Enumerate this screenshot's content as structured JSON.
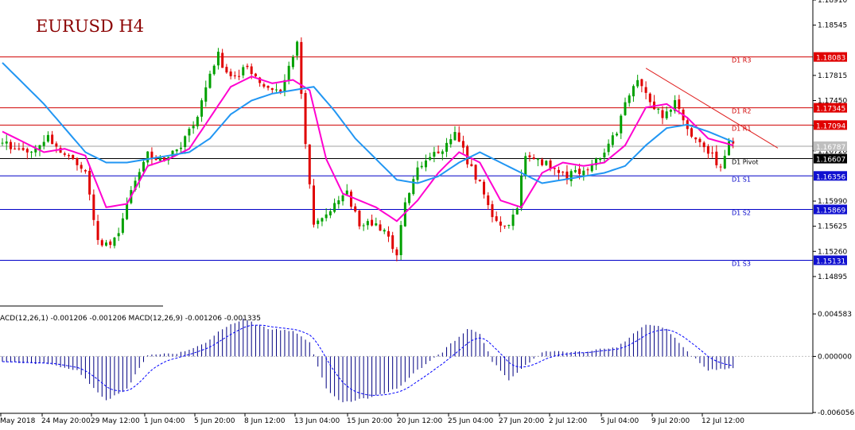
{
  "chart_data": {
    "type": "candlestick",
    "title": "EURUSD H4",
    "colors": {
      "bull": "#00a000",
      "bear": "#e00000",
      "ma_fast": "#ff00d0",
      "ma_slow": "#2196f3",
      "resistance": "#d00000",
      "pivot": "#000000",
      "support": "#0000c8",
      "current_price_line": "#a0a0a0",
      "trendline": "#e02020",
      "macd_bars": "#000080",
      "macd_signal": "#0000ff"
    },
    "price_axis": {
      "range": [
        1.1449,
        1.1891
      ],
      "ticks": [
        "1.18910",
        "1.18545",
        "1.17815",
        "1.17450",
        "1.17085",
        "1.16720",
        "1.15990",
        "1.15625",
        "1.15260",
        "1.14895"
      ]
    },
    "levels": [
      {
        "label": "D1 R3",
        "value": "1.18083",
        "kind": "resistance"
      },
      {
        "label": "D1 R2",
        "value": "1.17345",
        "kind": "resistance"
      },
      {
        "label": "D1 R1",
        "value": "1.17094",
        "kind": "resistance"
      },
      {
        "label": "D1 Pivot",
        "value": "1.16607",
        "kind": "pivot"
      },
      {
        "label": "D1 S1",
        "value": "1.16356",
        "kind": "support"
      },
      {
        "label": "D1 S2",
        "value": "1.15869",
        "kind": "support"
      },
      {
        "label": "D1 S3",
        "value": "1.15131",
        "kind": "support"
      }
    ],
    "current_price": "1.16787",
    "time_axis_labels": [
      "May 2018",
      "24 May 20:00",
      "29 May 12:00",
      "1 Jun 04:00",
      "5 Jun 20:00",
      "8 Jun 12:00",
      "13 Jun 04:00",
      "15 Jun 20:00",
      "20 Jun 12:00",
      "25 Jun 04:00",
      "27 Jun 20:00",
      "2 Jul 12:00",
      "5 Jul 04:00",
      "9 Jul 20:00",
      "12 Jul 12:00"
    ],
    "price_path": [
      [
        0,
        1.1685
      ],
      [
        6,
        1.167
      ],
      [
        12,
        1.169
      ],
      [
        17,
        1.1665
      ],
      [
        21,
        1.164
      ],
      [
        24,
        1.1545
      ],
      [
        27,
        1.153
      ],
      [
        30,
        1.157
      ],
      [
        33,
        1.163
      ],
      [
        36,
        1.1665
      ],
      [
        40,
        1.166
      ],
      [
        44,
        1.168
      ],
      [
        48,
        1.172
      ],
      [
        51,
        1.1785
      ],
      [
        53,
        1.181
      ],
      [
        56,
        1.1775
      ],
      [
        60,
        1.1795
      ],
      [
        64,
        1.177
      ],
      [
        68,
        1.176
      ],
      [
        71,
        1.1805
      ],
      [
        72,
        1.1825
      ],
      [
        74,
        1.168
      ],
      [
        76,
        1.1565
      ],
      [
        80,
        1.159
      ],
      [
        84,
        1.1615
      ],
      [
        87,
        1.156
      ],
      [
        91,
        1.157
      ],
      [
        94,
        1.1545
      ],
      [
        96,
        1.1525
      ],
      [
        98,
        1.16
      ],
      [
        101,
        1.165
      ],
      [
        105,
        1.1665
      ],
      [
        108,
        1.168
      ],
      [
        110,
        1.1705
      ],
      [
        113,
        1.1655
      ],
      [
        116,
        1.1625
      ],
      [
        119,
        1.157
      ],
      [
        122,
        1.156
      ],
      [
        125,
        1.159
      ],
      [
        127,
        1.167
      ],
      [
        130,
        1.1655
      ],
      [
        134,
        1.165
      ],
      [
        137,
        1.1635
      ],
      [
        141,
        1.1645
      ],
      [
        145,
        1.1665
      ],
      [
        149,
        1.17
      ],
      [
        152,
        1.1755
      ],
      [
        154,
        1.1775
      ],
      [
        157,
        1.1745
      ],
      [
        160,
        1.172
      ],
      [
        163,
        1.1745
      ],
      [
        166,
        1.1705
      ],
      [
        169,
        1.1685
      ],
      [
        172,
        1.1665
      ],
      [
        174,
        1.1645
      ],
      [
        175,
        1.166
      ],
      [
        176,
        1.168
      ]
    ],
    "moving_averages": [
      {
        "name": "fast",
        "values": [
          [
            0,
            1.17
          ],
          [
            5,
            1.1685
          ],
          [
            10,
            1.167
          ],
          [
            15,
            1.1675
          ],
          [
            20,
            1.1665
          ],
          [
            25,
            1.159
          ],
          [
            30,
            1.1595
          ],
          [
            35,
            1.165
          ],
          [
            40,
            1.166
          ],
          [
            45,
            1.1675
          ],
          [
            50,
            1.172
          ],
          [
            55,
            1.1765
          ],
          [
            60,
            1.178
          ],
          [
            65,
            1.177
          ],
          [
            70,
            1.1775
          ],
          [
            74,
            1.176
          ],
          [
            78,
            1.166
          ],
          [
            82,
            1.161
          ],
          [
            86,
            1.16
          ],
          [
            90,
            1.159
          ],
          [
            95,
            1.157
          ],
          [
            100,
            1.16
          ],
          [
            105,
            1.164
          ],
          [
            110,
            1.167
          ],
          [
            115,
            1.1655
          ],
          [
            120,
            1.16
          ],
          [
            125,
            1.159
          ],
          [
            130,
            1.164
          ],
          [
            135,
            1.1655
          ],
          [
            140,
            1.165
          ],
          [
            145,
            1.1655
          ],
          [
            150,
            1.168
          ],
          [
            155,
            1.1735
          ],
          [
            160,
            1.174
          ],
          [
            165,
            1.172
          ],
          [
            170,
            1.169
          ],
          [
            176,
            1.168
          ]
        ]
      },
      {
        "name": "slow",
        "values": [
          [
            0,
            1.18
          ],
          [
            5,
            1.177
          ],
          [
            10,
            1.174
          ],
          [
            15,
            1.1705
          ],
          [
            20,
            1.167
          ],
          [
            25,
            1.1655
          ],
          [
            30,
            1.1655
          ],
          [
            35,
            1.166
          ],
          [
            40,
            1.1665
          ],
          [
            45,
            1.167
          ],
          [
            50,
            1.169
          ],
          [
            55,
            1.1725
          ],
          [
            60,
            1.1745
          ],
          [
            65,
            1.1755
          ],
          [
            70,
            1.176
          ],
          [
            75,
            1.1765
          ],
          [
            80,
            1.173
          ],
          [
            85,
            1.169
          ],
          [
            90,
            1.166
          ],
          [
            95,
            1.163
          ],
          [
            100,
            1.1625
          ],
          [
            105,
            1.1635
          ],
          [
            110,
            1.1655
          ],
          [
            115,
            1.167
          ],
          [
            120,
            1.1655
          ],
          [
            125,
            1.164
          ],
          [
            130,
            1.1625
          ],
          [
            135,
            1.163
          ],
          [
            140,
            1.1635
          ],
          [
            145,
            1.164
          ],
          [
            150,
            1.165
          ],
          [
            155,
            1.168
          ],
          [
            160,
            1.1705
          ],
          [
            165,
            1.171
          ],
          [
            170,
            1.17
          ],
          [
            176,
            1.1685
          ]
        ]
      }
    ],
    "macd": {
      "label": "ACD(12,26,1) -0.001206 -0.001206 MACD(12,26,9) -0.001206 -0.001335",
      "axis_ticks": [
        "0.004583",
        "0.000000",
        "-0.006056"
      ],
      "range": [
        -0.006056,
        0.004583
      ],
      "histogram_path": [
        [
          0,
          -0.0006
        ],
        [
          10,
          -0.0008
        ],
        [
          18,
          -0.0015
        ],
        [
          25,
          -0.0048
        ],
        [
          30,
          -0.0035
        ],
        [
          35,
          0.0002
        ],
        [
          42,
          0.0003
        ],
        [
          48,
          0.0012
        ],
        [
          53,
          0.003
        ],
        [
          58,
          0.004
        ],
        [
          64,
          0.003
        ],
        [
          70,
          0.0028
        ],
        [
          74,
          0.0015
        ],
        [
          78,
          -0.0035
        ],
        [
          82,
          -0.005
        ],
        [
          88,
          -0.0045
        ],
        [
          95,
          -0.0035
        ],
        [
          100,
          -0.0015
        ],
        [
          106,
          0.0005
        ],
        [
          112,
          0.003
        ],
        [
          115,
          0.0025
        ],
        [
          118,
          -0.0005
        ],
        [
          122,
          -0.0025
        ],
        [
          126,
          -0.001
        ],
        [
          130,
          0.0005
        ],
        [
          140,
          0.0005
        ],
        [
          148,
          0.001
        ],
        [
          155,
          0.0035
        ],
        [
          160,
          0.003
        ],
        [
          165,
          0.0005
        ],
        [
          170,
          -0.0015
        ],
        [
          176,
          -0.0012
        ]
      ]
    }
  }
}
